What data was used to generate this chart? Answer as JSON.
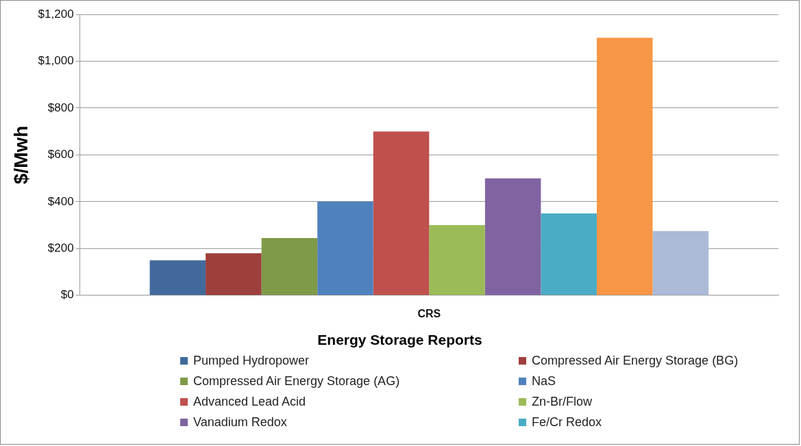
{
  "chart_data": {
    "type": "bar",
    "categories": [
      "CRS"
    ],
    "ylabel": "$/Mwh",
    "xlabel": "Energy Storage Reports",
    "ylim": [
      0,
      1200
    ],
    "yticks": [
      {
        "value": 0,
        "label": "$0"
      },
      {
        "value": 200,
        "label": "$200"
      },
      {
        "value": 400,
        "label": "$400"
      },
      {
        "value": 600,
        "label": "$600"
      },
      {
        "value": 800,
        "label": "$800"
      },
      {
        "value": 1000,
        "label": "$1,000"
      },
      {
        "value": 1200,
        "label": "$1,200"
      }
    ],
    "grid": "y",
    "legend": "bottom",
    "series": [
      {
        "name": "Pumped Hydropower",
        "color": "#416a9b",
        "values": [
          150
        ]
      },
      {
        "name": "Compressed Air Energy Storage (BG)",
        "color": "#9e3f3c",
        "values": [
          180
        ]
      },
      {
        "name": "Compressed Air Energy Storage (AG)",
        "color": "#7f9a48",
        "values": [
          245
        ]
      },
      {
        "name": "NaS",
        "color": "#4f81bd",
        "values": [
          400
        ]
      },
      {
        "name": "Advanced Lead Acid",
        "color": "#c0504d",
        "values": [
          700
        ]
      },
      {
        "name": "Zn-Br/Flow",
        "color": "#9bbb59",
        "values": [
          300
        ]
      },
      {
        "name": "Vanadium Redox",
        "color": "#8064a2",
        "values": [
          500
        ]
      },
      {
        "name": "Fe/Cr Redox",
        "color": "#4bacc6",
        "values": [
          350
        ]
      },
      {
        "color": "#f79646",
        "values": [
          1100
        ]
      },
      {
        "color": "#aabad7",
        "values": [
          275
        ]
      }
    ]
  }
}
